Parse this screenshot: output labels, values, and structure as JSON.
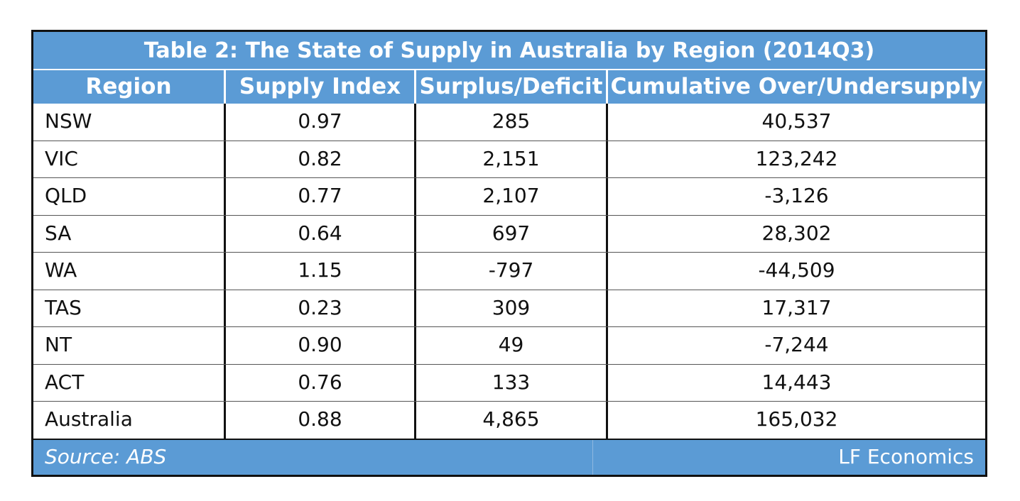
{
  "table": {
    "title": "Table 2: The State of Supply in Australia by Region (2014Q3)",
    "columns": [
      "Region",
      "Supply Index",
      "Surplus/Deficit",
      "Cumulative Over/Undersupply"
    ],
    "rows": [
      [
        "NSW",
        "0.97",
        "285",
        "40,537"
      ],
      [
        "VIC",
        "0.82",
        "2,151",
        "123,242"
      ],
      [
        "QLD",
        "0.77",
        "2,107",
        "-3,126"
      ],
      [
        "SA",
        "0.64",
        "697",
        "28,302"
      ],
      [
        "WA",
        "1.15",
        "-797",
        "-44,509"
      ],
      [
        "TAS",
        "0.23",
        "309",
        "17,317"
      ],
      [
        "NT",
        "0.90",
        "49",
        "-7,244"
      ],
      [
        "ACT",
        "0.76",
        "133",
        "14,443"
      ],
      [
        "Australia",
        "0.88",
        "4,865",
        "165,032"
      ]
    ],
    "footer": {
      "source": "Source: ABS",
      "credit": "LF Economics"
    }
  },
  "colors": {
    "header_background": "#5b9bd5",
    "header_text": "#ffffff",
    "border": "#111111"
  }
}
